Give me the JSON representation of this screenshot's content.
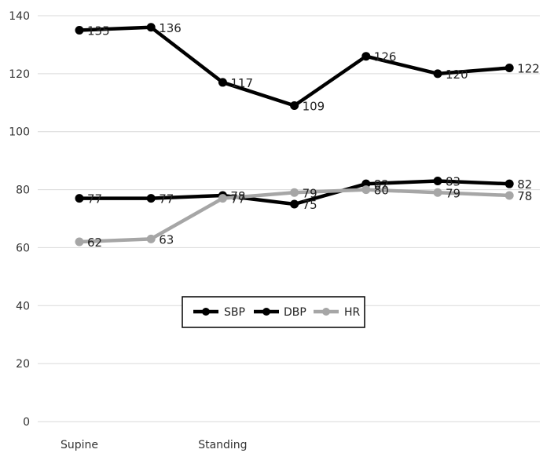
{
  "chart_data": {
    "type": "line",
    "title": "",
    "xlabel": "",
    "ylabel": "",
    "x": [
      "Supine",
      "",
      "Standing",
      "",
      "",
      "",
      ""
    ],
    "ylim": [
      0,
      140
    ],
    "yticks": [
      0,
      20,
      40,
      60,
      80,
      100,
      120,
      140
    ],
    "grid": true,
    "legend_position": "center",
    "series": [
      {
        "name": "SBP",
        "color": "#000000",
        "values": [
          135,
          136,
          117,
          109,
          126,
          120,
          122
        ]
      },
      {
        "name": "DBP",
        "color": "#000000",
        "values": [
          77,
          77,
          78,
          75,
          82,
          83,
          82
        ]
      },
      {
        "name": "HR",
        "color": "#a6a6a6",
        "values": [
          62,
          63,
          77,
          79,
          80,
          79,
          78
        ]
      }
    ]
  }
}
